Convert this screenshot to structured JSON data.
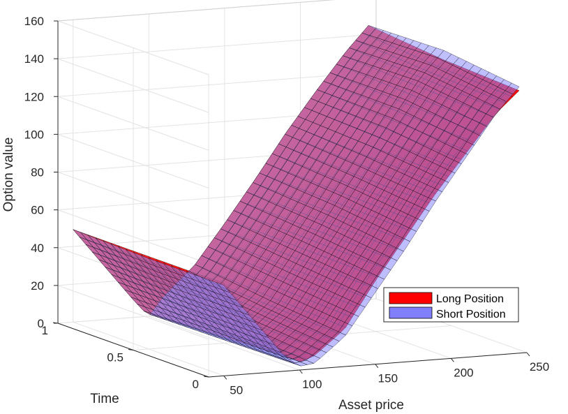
{
  "chart_data": {
    "type": "surface",
    "title": "",
    "xlabel": "Asset price",
    "ylabel": "Time",
    "zlabel": "Option value",
    "xlim": [
      40,
      250
    ],
    "ylim": [
      0,
      1
    ],
    "zlim": [
      0,
      160
    ],
    "x_ticks": [
      "50",
      "100",
      "150",
      "200",
      "250"
    ],
    "y_ticks": [
      "0",
      "0.5",
      "1"
    ],
    "z_ticks": [
      "0",
      "20",
      "40",
      "60",
      "80",
      "100",
      "120",
      "140",
      "160"
    ],
    "grid": true,
    "legend_position": "lower-right",
    "series": [
      {
        "name": "Long Position",
        "color": "#ff0000",
        "asset_price": [
          50,
          70,
          90,
          100,
          110,
          130,
          150,
          170,
          190,
          210,
          230,
          245
        ],
        "time": [
          0,
          0.5,
          1
        ],
        "values": [
          [
            49,
            29,
            9,
            4,
            7,
            20,
            44,
            66,
            88,
            108,
            128,
            139
          ],
          [
            49,
            29,
            9,
            2,
            9,
            22,
            45,
            67,
            89,
            110,
            130,
            141
          ],
          [
            49,
            29,
            9,
            0,
            10,
            25,
            46,
            68,
            91,
            112,
            132,
            145
          ]
        ]
      },
      {
        "name": "Short Position",
        "color": "#8080ff",
        "asset_price": [
          50,
          70,
          90,
          100,
          110,
          130,
          150,
          170,
          190,
          210,
          230,
          245
        ],
        "time": [
          0,
          0.5,
          1
        ],
        "values": [
          [
            48,
            28,
            8,
            2,
            3,
            16,
            38,
            60,
            84,
            106,
            128,
            141
          ],
          [
            48,
            28,
            9,
            1,
            6,
            20,
            42,
            65,
            88,
            111,
            133,
            146
          ],
          [
            49,
            29,
            9,
            0,
            10,
            25,
            46,
            68,
            91,
            112,
            132,
            145
          ]
        ]
      }
    ]
  }
}
